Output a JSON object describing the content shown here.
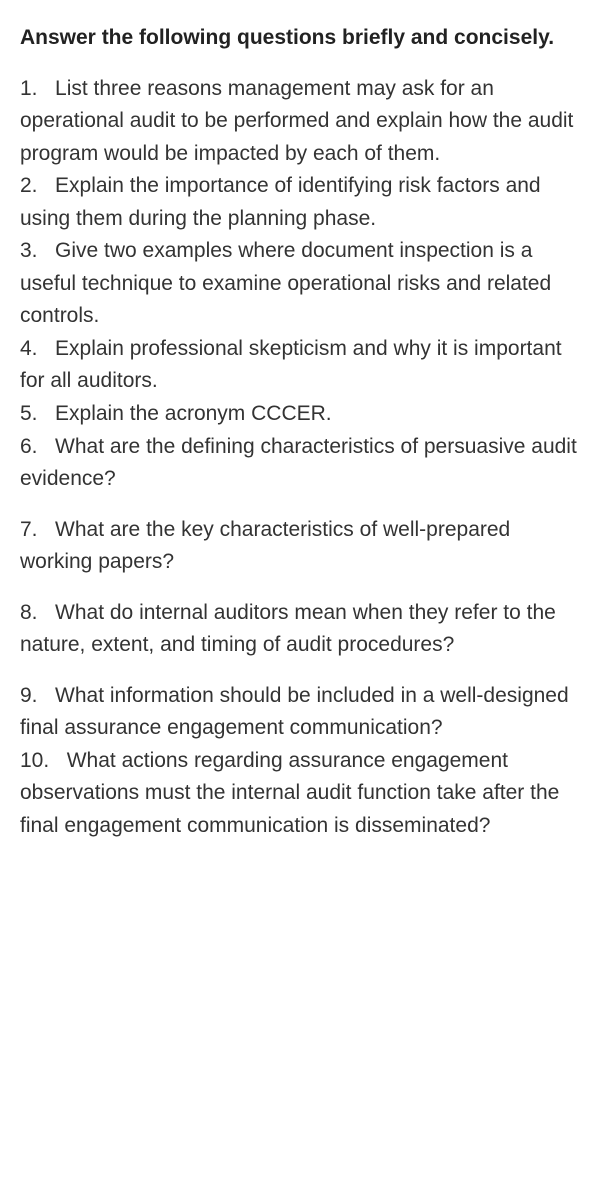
{
  "heading": "Answer the following questions briefly and concisely.",
  "questions": {
    "q1": "List three reasons management may ask for an operational audit to be performed and explain how the audit program would be impacted by each of them.",
    "q2": "Explain the importance of identifying risk factors and using them during the planning phase.",
    "q3": "Give two examples where document inspection is a useful technique to examine operational risks and related controls.",
    "q4": "Explain professional skepticism and why it is important for all auditors.",
    "q5": "Explain the acronym CCCER.",
    "q6": "What are the defining characteristics of persuasive audit evidence?",
    "q7": "What are the key characteristics of well-prepared working papers?",
    "q8": "What do internal auditors mean when they refer to the nature, extent, and timing of audit procedures?",
    "q9": "What information should be included in a well-designed final assurance engagement communication?",
    "q10": "What actions regarding assurance engagement observations must the internal audit function take after the final engagement communication is disseminated?"
  },
  "numbers": {
    "n1": "1.",
    "n2": "2.",
    "n3": "3.",
    "n4": "4.",
    "n5": "5.",
    "n6": "6.",
    "n7": "7.",
    "n8": "8.",
    "n9": "9.",
    "n10": "10."
  }
}
